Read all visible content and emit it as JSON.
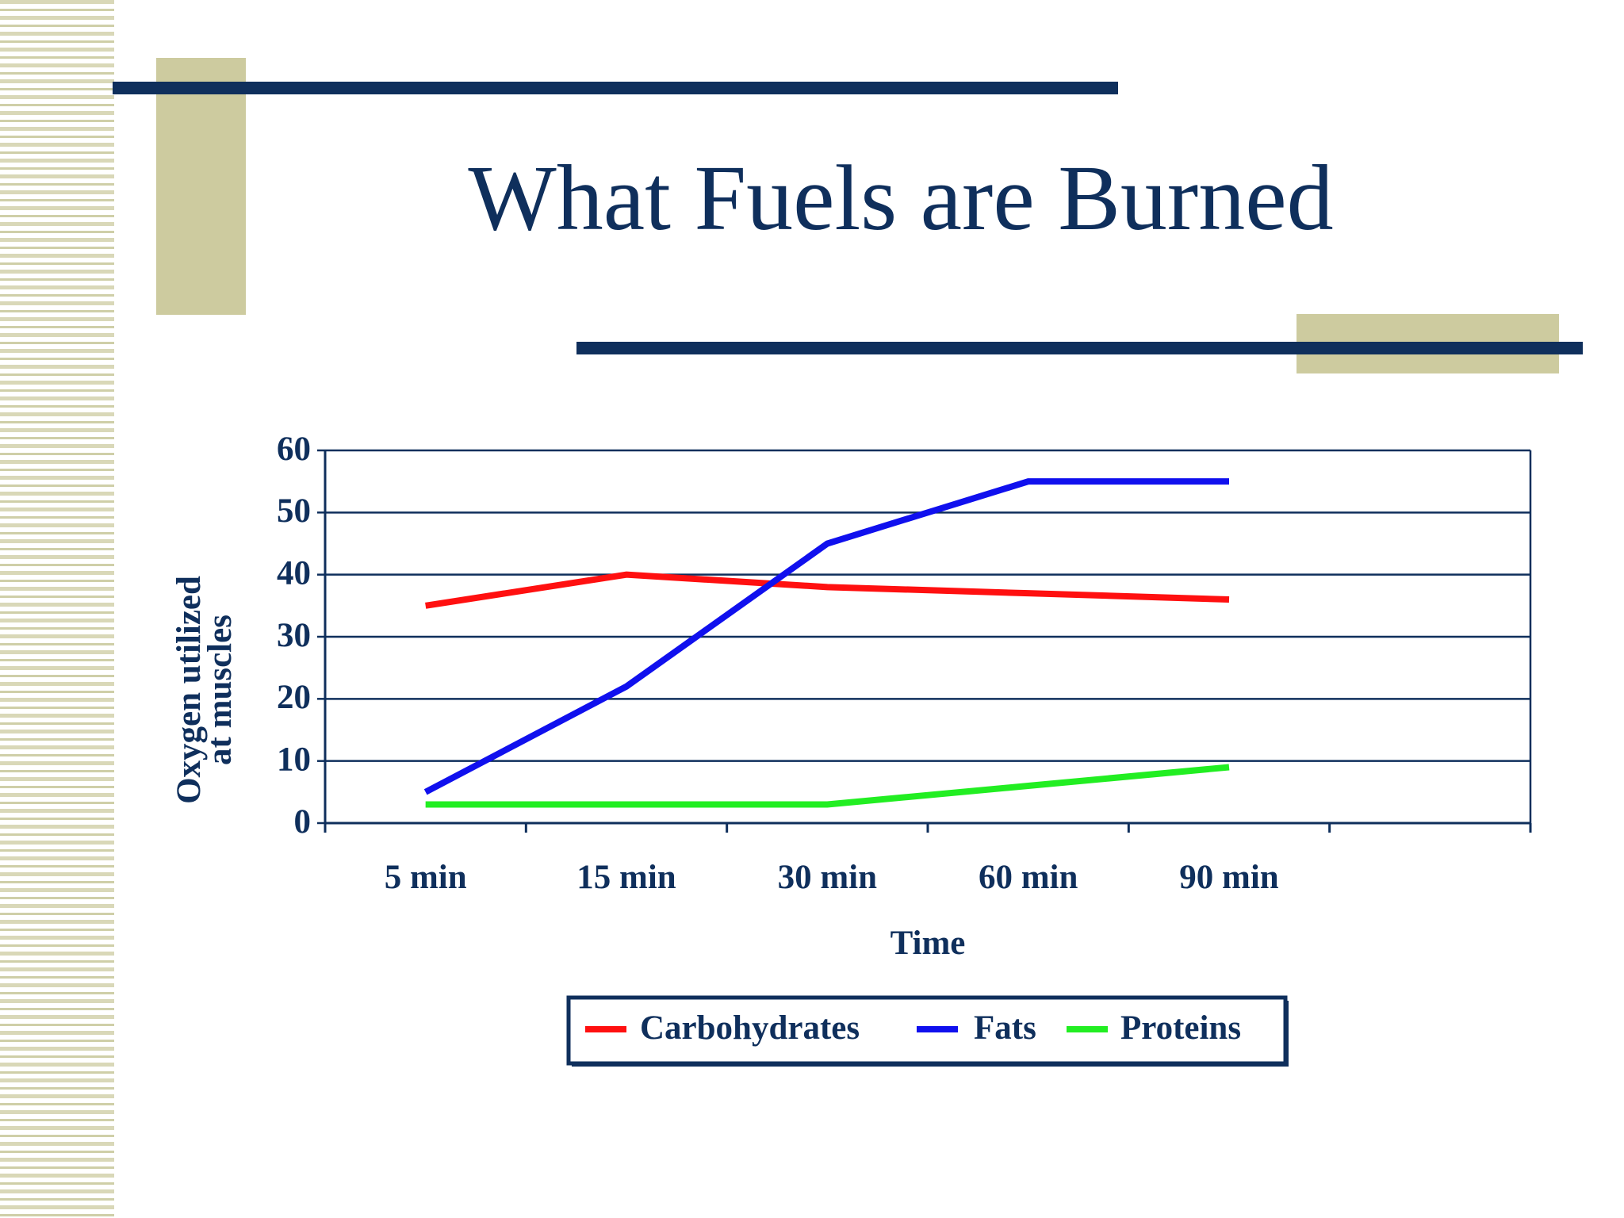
{
  "chart_data": {
    "type": "line",
    "title": "What Fuels are Burned",
    "x_label": "Time",
    "y_label": [
      "Oxygen utilized",
      "at muscles"
    ],
    "categories": [
      "5 min",
      "15 min",
      "30 min",
      "60 min",
      "90 min",
      null
    ],
    "series": [
      {
        "name": "Carbohydrates",
        "color": "#ff1010",
        "values": [
          35,
          40,
          38,
          37,
          36,
          null
        ]
      },
      {
        "name": "Fats",
        "color": "#1010ee",
        "values": [
          5,
          22,
          45,
          55,
          55,
          null
        ]
      },
      {
        "name": "Proteins",
        "color": "#22ee22",
        "values": [
          3,
          3,
          3,
          6,
          9,
          null
        ]
      }
    ],
    "ylim": [
      0,
      60
    ],
    "yticks": [
      0,
      10,
      20,
      30,
      40,
      50,
      60
    ],
    "grid": true,
    "legend": "bottom"
  }
}
